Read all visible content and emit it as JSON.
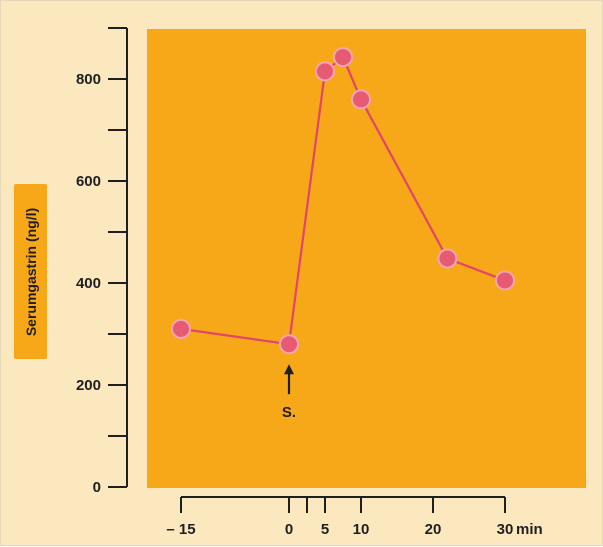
{
  "chart_data": {
    "type": "line",
    "ylabel": "Serumgastrin (ng/l)",
    "xlabel": "",
    "x_unit": "min",
    "ylim": [
      0,
      900
    ],
    "xlim": [
      -17,
      34
    ],
    "y_ticks": [
      0,
      200,
      400,
      600,
      800
    ],
    "y_minor_step": 100,
    "x_ticks": [
      -15,
      0,
      5,
      10,
      20,
      30
    ],
    "x_tick_labels": [
      "– 15",
      "0",
      "5",
      "10",
      "20",
      "30"
    ],
    "x_unlabeled_ticks": [
      2.5
    ],
    "grid": false,
    "series": [
      {
        "x": [
          -15,
          0,
          5,
          7.5,
          10,
          22,
          30
        ],
        "y": [
          310,
          280,
          815,
          843,
          760,
          448,
          405
        ]
      }
    ],
    "annotations": [
      {
        "text": "S.",
        "x": 0,
        "type": "arrow-up"
      }
    ],
    "colors": {
      "plot_bg": "#f7a818",
      "page_bg": "#fbe8bf",
      "line": "#e2446a",
      "marker_fill": "#e65a73",
      "marker_stroke": "#f3a6b2",
      "axis": "#1f1f1f"
    }
  }
}
